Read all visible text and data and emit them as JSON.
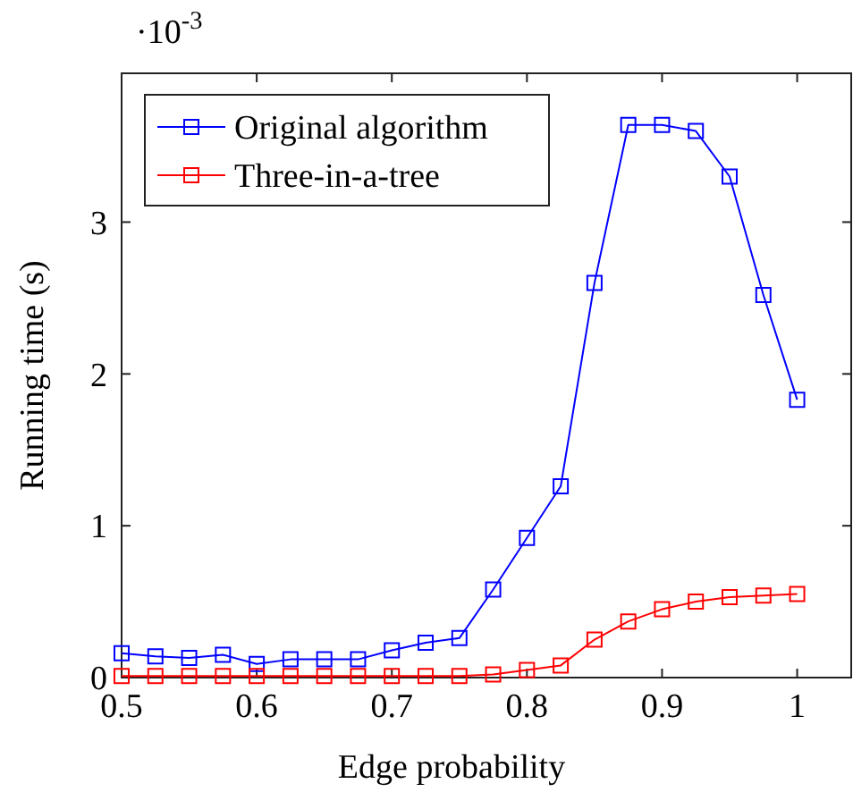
{
  "chart_data": {
    "type": "line",
    "xlabel": "Edge probability",
    "ylabel": "Running time (s)",
    "annotations": [
      "·10$^{-3}$"
    ],
    "x": [
      0.5,
      0.525,
      0.55,
      0.575,
      0.6,
      0.625,
      0.65,
      0.675,
      0.7,
      0.725,
      0.75,
      0.775,
      0.8,
      0.825,
      0.85,
      0.875,
      0.9,
      0.925,
      0.95,
      0.975,
      1
    ],
    "series": [
      {
        "name": "Original algorithm",
        "color": "#0000ff",
        "values": [
          0.16,
          0.14,
          0.13,
          0.15,
          0.09,
          0.12,
          0.12,
          0.12,
          0.18,
          0.23,
          0.26,
          0.58,
          0.92,
          1.26,
          2.6,
          3.64,
          3.64,
          3.6,
          3.3,
          2.52,
          1.83
        ]
      },
      {
        "name": "Three-in-a-tree",
        "color": "#ff0000",
        "values": [
          0.01,
          0.01,
          0.01,
          0.01,
          0.01,
          0.01,
          0.01,
          0.01,
          0.01,
          0.01,
          0.01,
          0.02,
          0.05,
          0.08,
          0.25,
          0.37,
          0.45,
          0.5,
          0.53,
          0.54,
          0.55
        ]
      }
    ],
    "xlim": [
      0.5,
      1.04
    ],
    "ylim": [
      0,
      3.98
    ],
    "xticks": [
      0.5,
      0.6,
      0.7,
      0.8,
      0.9,
      1
    ],
    "yticks": [
      0,
      1,
      2,
      3
    ],
    "grid": false,
    "legend": "top left",
    "marker": "square",
    "line_style": "solid"
  }
}
